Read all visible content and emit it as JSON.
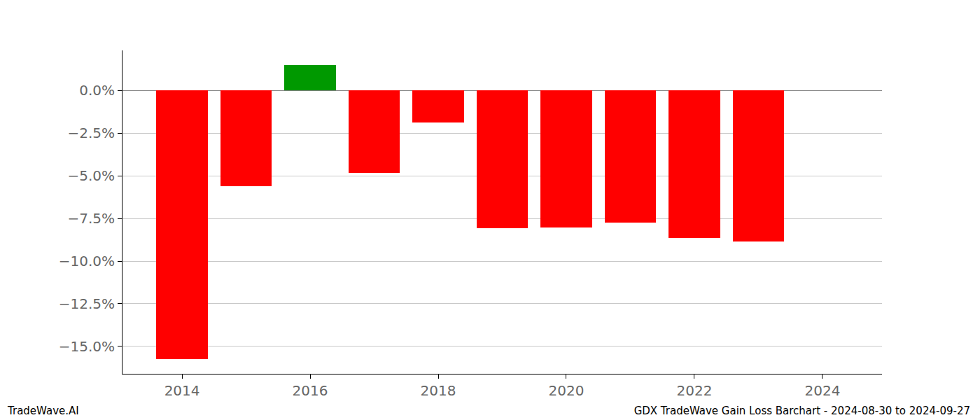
{
  "chart_data": {
    "type": "bar",
    "title": "GDX TradeWave Gain Loss Barchart - 2024-08-30 to 2024-09-27",
    "annotations": [
      "TradeWave.AI"
    ],
    "x": [
      2014,
      2015,
      2016,
      2017,
      2018,
      2019,
      2020,
      2021,
      2022,
      2023
    ],
    "values": [
      -15.74,
      -5.61,
      1.48,
      -4.84,
      -1.89,
      -8.07,
      -8.03,
      -7.75,
      -8.65,
      -8.85
    ],
    "colors": [
      "#ff0000",
      "#ff0000",
      "#009900",
      "#ff0000",
      "#ff0000",
      "#ff0000",
      "#ff0000",
      "#ff0000",
      "#ff0000",
      "#ff0000"
    ],
    "xlim": [
      2013.07,
      2024.93
    ],
    "xticks": [
      2014,
      2016,
      2018,
      2020,
      2022,
      2024
    ],
    "ylim": [
      -16.6,
      2.34
    ],
    "yticks": [
      {
        "value": 0,
        "label": "0.0%"
      },
      {
        "value": -2.5,
        "label": "−2.5%"
      },
      {
        "value": -5,
        "label": "−5.0%"
      },
      {
        "value": -7.5,
        "label": "−7.5%"
      },
      {
        "value": -10,
        "label": "−10.0%"
      },
      {
        "value": -12.5,
        "label": "−12.5%"
      },
      {
        "value": -15,
        "label": "−15.0%"
      }
    ],
    "grid": true
  }
}
